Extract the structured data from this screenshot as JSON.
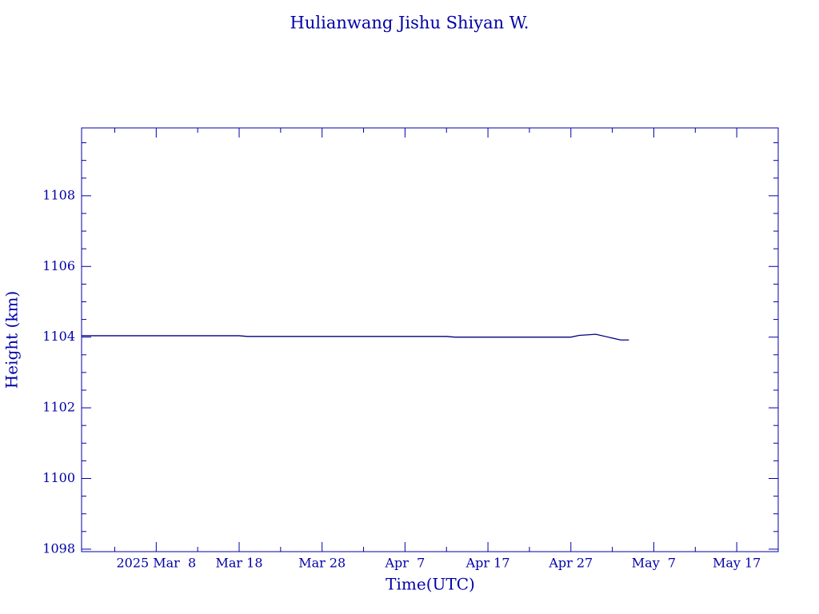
{
  "chart_data": {
    "type": "line",
    "title": "Hulianwang Jishu Shiyan W.",
    "xlabel": "Time(UTC)",
    "ylabel": "Height (km)",
    "color": "#000080",
    "axis_color": "#0000a8",
    "x": [
      "2025-02-27",
      "2025-03-18",
      "2025-03-19",
      "2025-04-12",
      "2025-04-13",
      "2025-04-27",
      "2025-04-28",
      "2025-04-30",
      "2025-05-03",
      "2025-05-04"
    ],
    "series": [
      {
        "values": [
          1104.04,
          1104.04,
          1104.02,
          1104.02,
          1104.0,
          1104.0,
          1104.05,
          1104.08,
          1103.92,
          1103.92
        ]
      }
    ],
    "xlim": [
      "2025-02-27",
      "2025-05-22"
    ],
    "xticks": [
      {
        "value": "2025-03-08",
        "label": "2025 Mar  8"
      },
      {
        "value": "2025-03-18",
        "label": "Mar 18"
      },
      {
        "value": "2025-03-28",
        "label": "Mar 28"
      },
      {
        "value": "2025-04-07",
        "label": "Apr  7"
      },
      {
        "value": "2025-04-17",
        "label": "Apr 17"
      },
      {
        "value": "2025-04-27",
        "label": "Apr 27"
      },
      {
        "value": "2025-05-07",
        "label": "May  7"
      },
      {
        "value": "2025-05-17",
        "label": "May 17"
      }
    ],
    "xminorticks": [
      "2025-03-03",
      "2025-03-13",
      "2025-03-23",
      "2025-04-02",
      "2025-04-12",
      "2025-04-22",
      "2025-05-02",
      "2025-05-12",
      "2025-05-22"
    ],
    "ylim": [
      1097.93,
      1109.92
    ],
    "yticks": [
      1098,
      1100,
      1102,
      1104,
      1106,
      1108
    ],
    "yminorticks": [
      1098.5,
      1099,
      1099.5,
      1100.5,
      1101,
      1101.5,
      1102.5,
      1103,
      1103.5,
      1104.5,
      1105,
      1105.5,
      1106.5,
      1107,
      1107.5,
      1108.5,
      1109,
      1109.5
    ]
  }
}
